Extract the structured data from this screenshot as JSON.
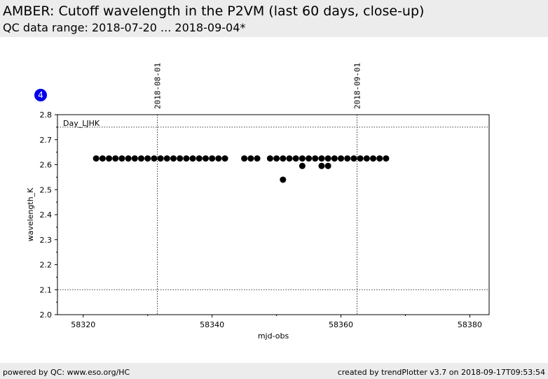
{
  "header": {
    "title": "AMBER: Cutoff wavelength in the P2VM (last 60 days, close-up)",
    "subtitle": "QC data range: 2018-07-20 ... 2018-09-04*"
  },
  "footer": {
    "left": "powered by QC: www.eso.org/HC",
    "right": "created by trendPlotter v3.7 on 2018-09-17T09:53:54"
  },
  "badge": {
    "label": "4",
    "color": "#0000ee"
  },
  "chart_data": {
    "type": "scatter",
    "xlabel": "mjd-obs",
    "ylabel": "wavelength_K",
    "xlim": [
      58316,
      58383
    ],
    "ylim": [
      2.0,
      2.8
    ],
    "xticks": [
      58320,
      58340,
      58360,
      58380
    ],
    "yticks": [
      2.0,
      2.1,
      2.2,
      2.3,
      2.4,
      2.5,
      2.6,
      2.7,
      2.8
    ],
    "reference_lines": [
      2.1,
      2.75
    ],
    "date_markers": [
      {
        "x": 58331.5,
        "label": "2018-08-01"
      },
      {
        "x": 58362.5,
        "label": "2018-09-01"
      }
    ],
    "annotation": "Day_LJHK",
    "series": [
      {
        "color": "#000000",
        "points": [
          [
            58322.0,
            2.625
          ],
          [
            58323.0,
            2.625
          ],
          [
            58324.0,
            2.625
          ],
          [
            58325.0,
            2.625
          ],
          [
            58326.0,
            2.625
          ],
          [
            58327.0,
            2.625
          ],
          [
            58328.0,
            2.625
          ],
          [
            58329.0,
            2.625
          ],
          [
            58330.0,
            2.625
          ],
          [
            58331.0,
            2.625
          ],
          [
            58332.0,
            2.625
          ],
          [
            58333.0,
            2.625
          ],
          [
            58334.0,
            2.625
          ],
          [
            58335.0,
            2.625
          ],
          [
            58336.0,
            2.625
          ],
          [
            58337.0,
            2.625
          ],
          [
            58338.0,
            2.625
          ],
          [
            58339.0,
            2.625
          ],
          [
            58340.0,
            2.625
          ],
          [
            58341.0,
            2.625
          ],
          [
            58342.0,
            2.625
          ],
          [
            58345.0,
            2.625
          ],
          [
            58346.0,
            2.625
          ],
          [
            58347.0,
            2.625
          ],
          [
            58349.0,
            2.625
          ],
          [
            58350.0,
            2.625
          ],
          [
            58351.0,
            2.625
          ],
          [
            58352.0,
            2.625
          ],
          [
            58353.0,
            2.625
          ],
          [
            58354.0,
            2.625
          ],
          [
            58355.0,
            2.625
          ],
          [
            58356.0,
            2.625
          ],
          [
            58357.0,
            2.625
          ],
          [
            58358.0,
            2.625
          ],
          [
            58359.0,
            2.625
          ],
          [
            58360.0,
            2.625
          ],
          [
            58361.0,
            2.625
          ],
          [
            58362.0,
            2.625
          ],
          [
            58363.0,
            2.625
          ],
          [
            58364.0,
            2.625
          ],
          [
            58365.0,
            2.625
          ],
          [
            58366.0,
            2.625
          ],
          [
            58367.0,
            2.625
          ],
          [
            58351.0,
            2.54
          ],
          [
            58354.0,
            2.595
          ],
          [
            58357.0,
            2.595
          ],
          [
            58358.0,
            2.595
          ]
        ]
      }
    ]
  }
}
